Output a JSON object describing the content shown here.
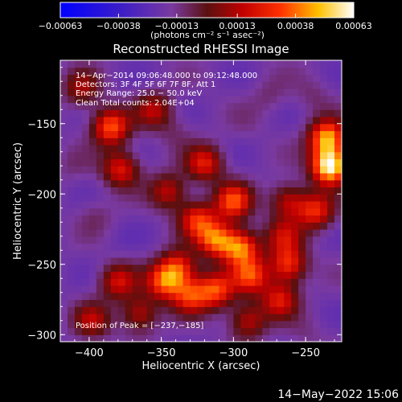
{
  "chart_data": {
    "type": "heatmap",
    "title": "Reconstructed RHESSI Image",
    "xlabel": "Heliocentric X (arcsec)",
    "ylabel": "Heliocentric Y (arcsec)",
    "xlim": [
      -420,
      -225
    ],
    "ylim": [
      -305,
      -105
    ],
    "x_ticks": [
      -400,
      -350,
      -300,
      -250
    ],
    "x_tick_labels": [
      "−400",
      "−350",
      "−300",
      "−250"
    ],
    "y_ticks": [
      -150,
      -200,
      -250,
      -300
    ],
    "y_tick_labels": [
      "−150",
      "−200",
      "−250",
      "−300"
    ],
    "colorbar": {
      "range": [
        -0.00063,
        0.00063
      ],
      "ticks": [
        -0.00063,
        -0.00038,
        -0.00013,
        0.00013,
        0.00038,
        0.00063
      ],
      "tick_labels": [
        "−0.00063",
        "−0.00038",
        "−0.00013",
        "0.00013",
        "0.00038",
        "0.00063"
      ],
      "unit_label": "(photons cm⁻² s⁻¹ asec⁻²)"
    },
    "annotations": [
      "14−Apr−2014 09:06:48.000 to 09:12:48.000",
      "Detectors: 3F 4F 5F 6F 7F 8F, Att 1",
      "Energy Range: 25.0 − 50.0 keV",
      "Clean     Total counts: 2.04E+04"
    ],
    "peak_label": "Position of Peak = [−237,−185]",
    "peak": [
      -237,
      -185
    ],
    "sources": [
      {
        "x": -233,
        "y": -180,
        "value": 0.00063
      },
      {
        "x": -235,
        "y": -160,
        "value": 0.00045
      },
      {
        "x": -243,
        "y": -212,
        "value": 0.00025
      },
      {
        "x": -385,
        "y": -152,
        "value": 0.00035
      },
      {
        "x": -378,
        "y": -182,
        "value": 0.00022
      },
      {
        "x": -355,
        "y": -140,
        "value": 0.00012
      },
      {
        "x": -320,
        "y": -178,
        "value": 0.00022
      },
      {
        "x": -300,
        "y": -205,
        "value": 0.00032
      },
      {
        "x": -325,
        "y": -218,
        "value": 0.00025
      },
      {
        "x": -312,
        "y": -232,
        "value": 0.00035
      },
      {
        "x": -295,
        "y": -238,
        "value": 0.00038
      },
      {
        "x": -338,
        "y": -252,
        "value": 0.00025
      },
      {
        "x": -348,
        "y": -262,
        "value": 0.0003
      },
      {
        "x": -330,
        "y": -272,
        "value": 0.00025
      },
      {
        "x": -312,
        "y": -268,
        "value": 0.0003
      },
      {
        "x": -288,
        "y": -258,
        "value": 0.00028
      },
      {
        "x": -262,
        "y": -250,
        "value": 0.00028
      },
      {
        "x": -268,
        "y": -275,
        "value": 0.0002
      },
      {
        "x": -380,
        "y": -262,
        "value": 0.00018
      },
      {
        "x": -365,
        "y": -285,
        "value": 0.00015
      },
      {
        "x": -398,
        "y": -290,
        "value": 0.00012
      },
      {
        "x": -345,
        "y": -198,
        "value": 0.00015
      },
      {
        "x": -290,
        "y": -290,
        "value": 0.00015
      },
      {
        "x": -265,
        "y": -230,
        "value": 0.00012
      },
      {
        "x": -405,
        "y": -125,
        "value": 0.0001
      },
      {
        "x": -262,
        "y": -205,
        "value": 0.00015
      },
      {
        "x": -395,
        "y": -215,
        "value": -0.0001
      },
      {
        "x": -380,
        "y": -235,
        "value": -0.0002
      },
      {
        "x": -412,
        "y": -180,
        "value": -0.00012
      },
      {
        "x": -290,
        "y": -150,
        "value": -0.00015
      },
      {
        "x": -275,
        "y": -130,
        "value": -0.0001
      },
      {
        "x": -340,
        "y": -155,
        "value": -0.0001
      },
      {
        "x": -245,
        "y": -130,
        "value": -0.0001
      },
      {
        "x": -250,
        "y": -300,
        "value": -0.00012
      }
    ],
    "min_value": -0.00063,
    "max_value": 0.00063
  },
  "footer": {
    "timestamp": "14−May−2022 15:06"
  }
}
